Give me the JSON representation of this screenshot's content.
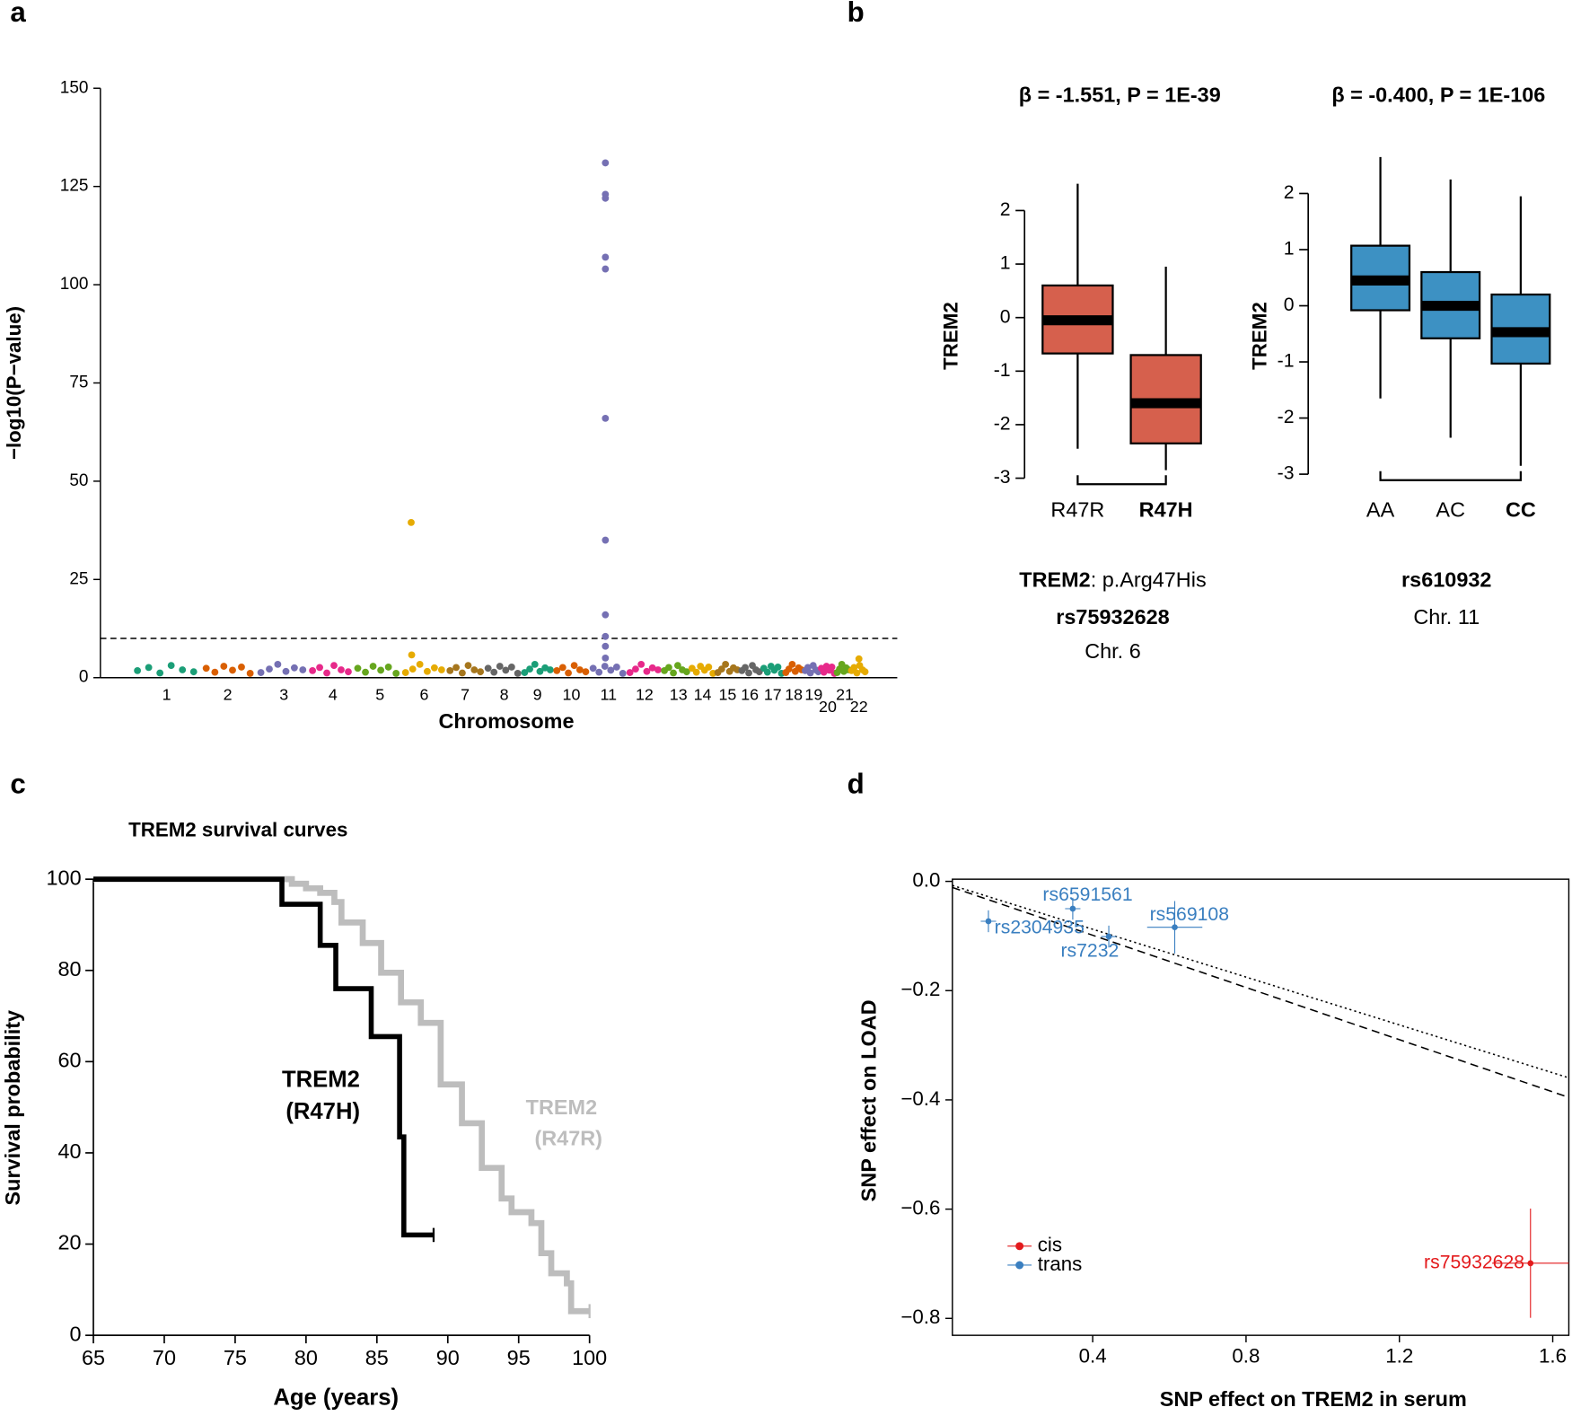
{
  "chart_data": [
    {
      "panel": "a",
      "type": "manhattan",
      "ylabel": "−log10(P−value)",
      "xlabel": "Chromosome",
      "ylim": [
        0,
        150
      ],
      "yticks": [
        0,
        25,
        50,
        75,
        100,
        125,
        150
      ],
      "xlim": [
        -118,
        3000
      ],
      "xticks": [
        {
          "value": 141,
          "label": "1"
        },
        {
          "value": 380,
          "label": "2"
        },
        {
          "value": 600,
          "label": "3"
        },
        {
          "value": 792,
          "label": "4"
        },
        {
          "value": 976,
          "label": "5"
        },
        {
          "value": 1149,
          "label": "6"
        },
        {
          "value": 1309,
          "label": "7"
        },
        {
          "value": 1462,
          "label": "8"
        },
        {
          "value": 1592,
          "label": "9"
        },
        {
          "value": 1725,
          "label": "10"
        },
        {
          "value": 1870,
          "label": "11"
        },
        {
          "value": 2011,
          "label": "12"
        },
        {
          "value": 2144,
          "label": "13"
        },
        {
          "value": 2238,
          "label": "14"
        },
        {
          "value": 2336,
          "label": "15"
        },
        {
          "value": 2423,
          "label": "16"
        },
        {
          "value": 2513,
          "label": "17"
        },
        {
          "value": 2595,
          "label": "18"
        },
        {
          "value": 2673,
          "label": "19"
        },
        {
          "value": 2728,
          "label": "20"
        },
        {
          "value": 2795,
          "label": "21"
        },
        {
          "value": 2850,
          "label": "22"
        }
      ],
      "hline": 10,
      "series": [
        {
          "color": "#1b9e77",
          "x": [
            27,
            71,
            115,
            159,
            203,
            247
          ],
          "values": [
            1.8,
            2.6,
            1.2,
            3.1,
            2.0,
            1.5
          ]
        },
        {
          "color": "#d95f02",
          "x": [
            296,
            330,
            365,
            399,
            434,
            468
          ],
          "values": [
            2.4,
            1.4,
            2.9,
            1.9,
            2.7,
            1.1
          ]
        },
        {
          "color": "#7570b3",
          "x": [
            510,
            543,
            576,
            608,
            641,
            674
          ],
          "values": [
            1.3,
            2.2,
            3.4,
            1.6,
            2.5,
            2.0
          ]
        },
        {
          "color": "#e7298a",
          "x": [
            712,
            740,
            768,
            796,
            824,
            852
          ],
          "values": [
            1.8,
            2.6,
            1.2,
            3.1,
            2.0,
            1.5
          ]
        },
        {
          "color": "#66a61e",
          "x": [
            889,
            919,
            949,
            979,
            1009,
            1039
          ],
          "values": [
            2.4,
            1.4,
            2.9,
            1.9,
            2.7,
            1.1
          ]
        },
        {
          "color": "#e6ab02",
          "x": [
            1076,
            1104,
            1132,
            1161,
            1189,
            1217,
            1098,
            1100
          ],
          "values": [
            1.3,
            2.2,
            3.4,
            1.6,
            2.5,
            2.0,
            39.5,
            5.8
          ]
        },
        {
          "color": "#a6761d",
          "x": [
            1250,
            1274,
            1298,
            1321,
            1345,
            1369
          ],
          "values": [
            1.8,
            2.6,
            1.2,
            3.1,
            2.0,
            1.5
          ]
        },
        {
          "color": "#666666",
          "x": [
            1399,
            1422,
            1445,
            1468,
            1491,
            1515
          ],
          "values": [
            2.4,
            1.4,
            2.9,
            1.9,
            2.7,
            1.1
          ]
        },
        {
          "color": "#1b9e77",
          "x": [
            1542,
            1562,
            1582,
            1602,
            1622,
            1642
          ],
          "values": [
            1.3,
            2.2,
            3.4,
            1.6,
            2.5,
            2.0
          ]
        },
        {
          "color": "#d95f02",
          "x": [
            1668,
            1691,
            1713,
            1736,
            1758,
            1781
          ],
          "values": [
            1.8,
            2.6,
            1.2,
            3.1,
            2.0,
            1.5
          ]
        },
        {
          "color": "#7570b3",
          "x": [
            1810,
            1833,
            1856,
            1879,
            1902,
            1926,
            1858,
            1858,
            1858,
            1858,
            1858,
            1858,
            1858,
            1858,
            1858,
            1858,
            1858
          ],
          "values": [
            2.4,
            1.4,
            2.9,
            1.9,
            2.7,
            1.1,
            131,
            123,
            122,
            107,
            104,
            66,
            35,
            16,
            10.5,
            8,
            5
          ]
        },
        {
          "color": "#e7298a",
          "x": [
            1954,
            1976,
            1998,
            2020,
            2042,
            2064
          ],
          "values": [
            1.3,
            2.2,
            3.4,
            1.6,
            2.5,
            2.0
          ]
        },
        {
          "color": "#66a61e",
          "x": [
            2089,
            2106,
            2124,
            2141,
            2159,
            2176
          ],
          "values": [
            1.8,
            2.6,
            1.2,
            3.1,
            2.0,
            1.5
          ]
        },
        {
          "color": "#e6ab02",
          "x": [
            2197,
            2214,
            2230,
            2246,
            2262,
            2279
          ],
          "values": [
            2.4,
            1.4,
            2.9,
            1.9,
            2.7,
            1.1
          ]
        },
        {
          "color": "#a6761d",
          "x": [
            2298,
            2313,
            2328,
            2344,
            2359,
            2374
          ],
          "values": [
            1.3,
            2.2,
            3.4,
            1.6,
            2.5,
            2.0
          ]
        },
        {
          "color": "#666666",
          "x": [
            2392,
            2405,
            2419,
            2433,
            2447,
            2460
          ],
          "values": [
            1.8,
            2.6,
            1.2,
            3.1,
            2.0,
            1.5
          ]
        },
        {
          "color": "#1b9e77",
          "x": [
            2478,
            2492,
            2506,
            2519,
            2533,
            2547
          ],
          "values": [
            2.4,
            1.4,
            2.9,
            1.9,
            2.7,
            1.1
          ]
        },
        {
          "color": "#d95f02",
          "x": [
            2564,
            2576,
            2589,
            2601,
            2614,
            2626
          ],
          "values": [
            1.3,
            2.2,
            3.4,
            1.6,
            2.5,
            2.0
          ]
        },
        {
          "color": "#7570b3",
          "x": [
            2640,
            2650,
            2660,
            2671,
            2681,
            2691
          ],
          "values": [
            1.8,
            2.6,
            1.2,
            3.1,
            2.0,
            1.5
          ]
        },
        {
          "color": "#e7298a",
          "x": [
            2703,
            2713,
            2723,
            2734,
            2744,
            2754
          ],
          "values": [
            2.4,
            1.4,
            2.9,
            1.9,
            2.7,
            1.1
          ]
        },
        {
          "color": "#66a61e",
          "x": [
            2765,
            2774,
            2783,
            2791,
            2800,
            2809
          ],
          "values": [
            1.3,
            2.2,
            3.4,
            1.6,
            2.5,
            2.0
          ]
        },
        {
          "color": "#e6ab02",
          "x": [
            2821,
            2831,
            2842,
            2853,
            2864,
            2874,
            2850
          ],
          "values": [
            1.8,
            2.6,
            1.2,
            3.1,
            2.0,
            1.5,
            4.8
          ]
        }
      ]
    },
    {
      "panel": "b",
      "type": "box",
      "title": "β = -1.551, P = 1E-39",
      "ylabel": "TREM2",
      "color": "#d6604d",
      "ylim": [
        -3,
        2.5
      ],
      "yticks": [
        -3,
        -2,
        -1,
        0,
        1,
        2
      ],
      "categories": [
        "R47R",
        "R47H"
      ],
      "category_bold": [
        false,
        true
      ],
      "low": [
        -2.45,
        -2.85
      ],
      "q1": [
        -0.67,
        -2.35
      ],
      "median": [
        -0.05,
        -1.6
      ],
      "q3": [
        0.6,
        -0.7
      ],
      "high": [
        2.5,
        0.95
      ],
      "caption": [
        [
          {
            "text": "TREM2",
            "bold": true
          },
          {
            "text": ": p.Arg47His"
          }
        ],
        [
          {
            "text": "rs75932628",
            "bold": true
          }
        ],
        [
          {
            "text": "Chr. 6"
          }
        ]
      ]
    },
    {
      "type": "box",
      "title": "β = -0.400, P = 1E-106",
      "ylabel": "TREM2",
      "color": "#3d91c3",
      "ylim": [
        -3,
        2.7
      ],
      "yticks": [
        -3,
        -2,
        -1,
        0,
        1,
        2
      ],
      "categories": [
        "AA",
        "AC",
        "CC"
      ],
      "category_bold": [
        false,
        false,
        true
      ],
      "low": [
        -1.65,
        -2.35,
        -2.85
      ],
      "q1": [
        -0.08,
        -0.58,
        -1.03
      ],
      "median": [
        0.45,
        0,
        -0.47
      ],
      "q3": [
        1.07,
        0.6,
        0.2
      ],
      "high": [
        2.65,
        2.25,
        1.95
      ],
      "caption": [
        [
          {
            "text": "rs610932",
            "bold": true
          }
        ],
        [
          {
            "text": "Chr. 11"
          }
        ]
      ]
    },
    {
      "panel": "c",
      "type": "step",
      "title": "TREM2 survival curves",
      "xlabel": "Age (years)",
      "ylabel": "Survival probability",
      "xlim": [
        65,
        100
      ],
      "xticks": [
        65,
        70,
        75,
        80,
        85,
        90,
        95,
        100
      ],
      "ylim": [
        0,
        100
      ],
      "yticks": [
        0,
        20,
        40,
        60,
        80,
        100
      ],
      "series": [
        {
          "label_lines": [
            "TREM2",
            "(R47R)"
          ],
          "color": "#bdbdbd",
          "x": [
            65,
            79,
            80,
            81,
            82,
            82.5,
            84,
            85.3,
            86.7,
            88.1,
            89.5,
            91,
            92.4,
            93.8,
            94.5,
            95.9,
            96.6,
            97.3,
            98.4,
            98.7,
            100
          ],
          "values": [
            100,
            99,
            98,
            97,
            95,
            90.5,
            86,
            79.5,
            73,
            68.5,
            55,
            46.5,
            36.7,
            30,
            27,
            24.6,
            18,
            13.6,
            11.4,
            5.3,
            5.3
          ]
        },
        {
          "label_lines": [
            "TREM2",
            "(R47H)"
          ],
          "color": "#000000",
          "x": [
            65,
            78.3,
            81,
            82.1,
            84.6,
            86.6,
            86.9,
            89
          ],
          "values": [
            100,
            94.5,
            85.5,
            76,
            65.5,
            43.5,
            22,
            22
          ]
        }
      ]
    },
    {
      "panel": "d",
      "type": "scatter",
      "xlabel": "SNP effect on TREM2 in serum",
      "ylabel": "SNP effect on LOAD",
      "xlim": [
        0.034,
        1.642
      ],
      "xticks": [
        0.4,
        0.8,
        1.2,
        1.6
      ],
      "ylim": [
        -0.831,
        0.004
      ],
      "yticks": [
        {
          "value": 0,
          "label": "0.0"
        },
        {
          "value": -0.2,
          "label": "−0.2"
        },
        {
          "value": -0.4,
          "label": "−0.4"
        },
        {
          "value": -0.6,
          "label": "−0.6"
        },
        {
          "value": -0.8,
          "label": "−0.8"
        }
      ],
      "legend": "lower left",
      "lines": [
        {
          "style": "dashed",
          "slope": -0.239,
          "intercept": -0.003
        },
        {
          "style": "dotted",
          "slope": -0.219,
          "intercept": 0
        }
      ],
      "series": [
        {
          "name": "cis",
          "color": "#e31a1c",
          "labels": [
            "rs75932628"
          ],
          "x": [
            1.542
          ],
          "values": [
            -0.699
          ],
          "xerr": [
            0.1
          ],
          "yerr": [
            0.1
          ]
        },
        {
          "name": "trans",
          "color": "#3a7fc0",
          "labels": [
            "rs6591561",
            "rs2304935",
            "rs7232",
            "rs569108"
          ],
          "x": [
            0.348,
            0.128,
            0.442,
            0.614
          ],
          "values": [
            -0.05,
            -0.073,
            -0.101,
            -0.084
          ],
          "xerr": [
            0.02,
            0.02,
            0.02,
            0.072
          ],
          "yerr": [
            0.02,
            0.02,
            0.02,
            0.048
          ]
        }
      ]
    }
  ]
}
